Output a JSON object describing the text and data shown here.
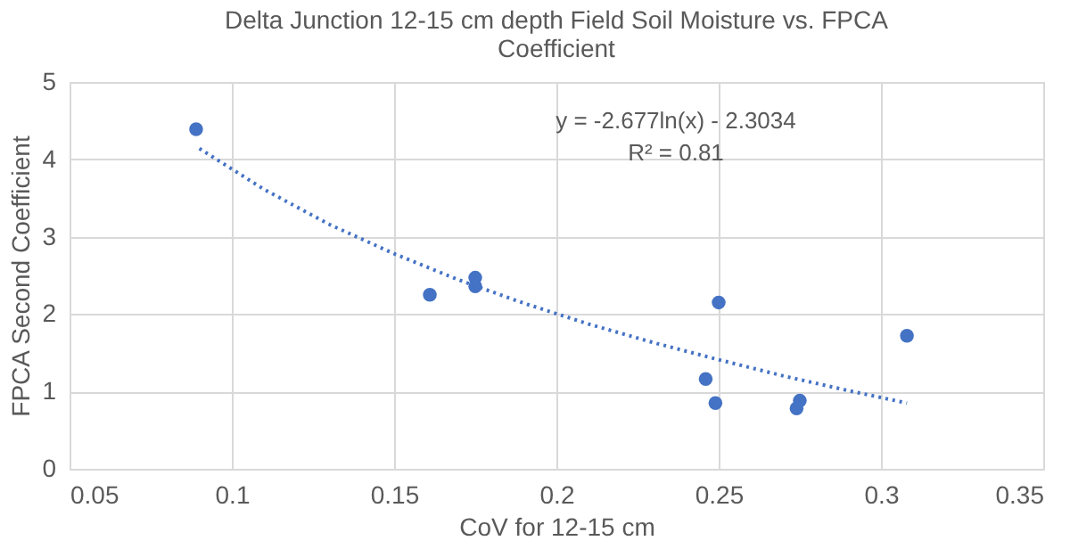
{
  "chart_data": {
    "type": "scatter",
    "title": "Delta Junction 12-15 cm depth Field Soil Moisture vs. FPCA Coefficient",
    "xlabel": "CoV for 12-15 cm",
    "ylabel": "FPCA Second Coefficient",
    "xlim": [
      0.05,
      0.35
    ],
    "xticks": [
      0.05,
      0.1,
      0.15,
      0.2,
      0.25,
      0.3,
      0.35
    ],
    "ylim": [
      0,
      5
    ],
    "yticks": [
      0,
      1,
      2,
      3,
      4,
      5
    ],
    "grid": true,
    "annotations": [
      "y = -2.677ln(x) - 2.3034",
      "R² = 0.81"
    ],
    "series": [
      {
        "color": "#4472c4",
        "marker": "circle",
        "x": [
          0.089,
          0.161,
          0.175,
          0.175,
          0.25,
          0.246,
          0.249,
          0.275,
          0.274,
          0.308
        ],
        "values": [
          4.39,
          2.25,
          2.47,
          2.36,
          2.15,
          1.16,
          0.85,
          0.88,
          0.78,
          1.72
        ]
      },
      {
        "type": "line",
        "color": "#4472c4",
        "line_style": "dotted",
        "marker": "none",
        "x": [
          0.09,
          0.11,
          0.13,
          0.15,
          0.17,
          0.19,
          0.21,
          0.23,
          0.25,
          0.27,
          0.29,
          0.308
        ],
        "values": [
          4.14,
          3.61,
          3.16,
          2.78,
          2.44,
          2.14,
          1.87,
          1.63,
          1.41,
          1.2,
          1.01,
          0.85
        ]
      }
    ]
  }
}
